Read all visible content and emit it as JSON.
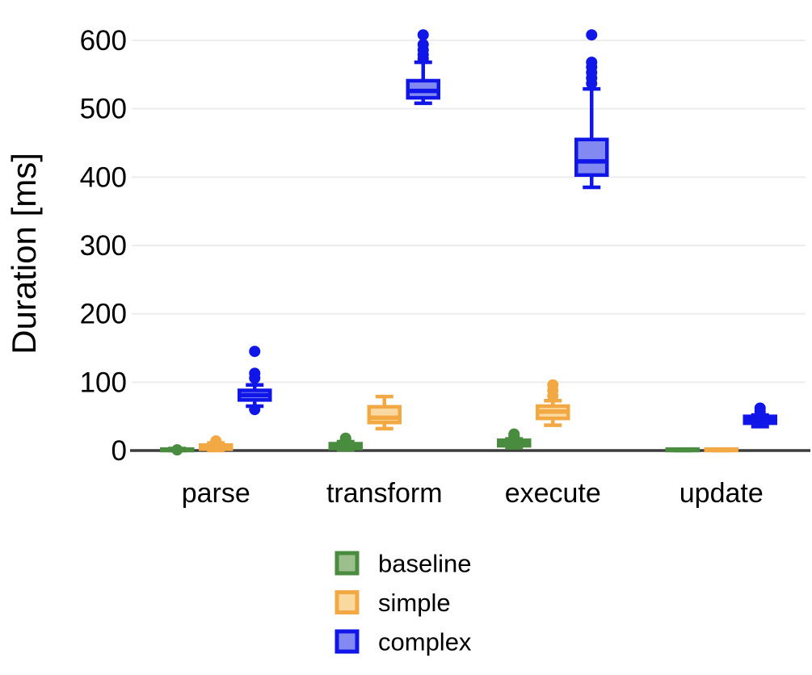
{
  "chart_data": {
    "type": "boxplot",
    "title": "",
    "xlabel": "",
    "ylabel": "Duration [ms]",
    "ylim": [
      0,
      640
    ],
    "yticks": [
      0,
      100,
      200,
      300,
      400,
      500,
      600
    ],
    "categories": [
      "parse",
      "transform",
      "execute",
      "update"
    ],
    "grid": "horizontal",
    "legend_position": "bottom",
    "colors": {
      "background": "#ffffff",
      "grid": "#ededed",
      "axis": "#3d3d3d",
      "text": "#000000"
    },
    "series": [
      {
        "name": "baseline",
        "border_color": "#4a8c3f",
        "fill_color": "#9dbf8e",
        "boxes": [
          {
            "category": "parse",
            "whisker_low": 0,
            "q1": 0,
            "median": 1,
            "q3": 2,
            "whisker_high": 3,
            "outliers": [
              1
            ]
          },
          {
            "category": "transform",
            "whisker_low": 1,
            "q1": 3,
            "median": 6,
            "q3": 10,
            "whisker_high": 13,
            "outliers": [
              14,
              16,
              18
            ]
          },
          {
            "category": "execute",
            "whisker_low": 4,
            "q1": 7,
            "median": 11,
            "q3": 15,
            "whisker_high": 17,
            "outliers": [
              20,
              22,
              24
            ]
          },
          {
            "category": "update",
            "whisker_low": 0,
            "q1": 0,
            "median": 1,
            "q3": 2,
            "whisker_high": 2,
            "outliers": []
          }
        ]
      },
      {
        "name": "simple",
        "border_color": "#f2a843",
        "fill_color": "#fad9a0",
        "boxes": [
          {
            "category": "parse",
            "whisker_low": 0,
            "q1": 2,
            "median": 5,
            "q3": 8,
            "whisker_high": 11,
            "outliers": [
              12,
              14
            ]
          },
          {
            "category": "transform",
            "whisker_low": 32,
            "q1": 41,
            "median": 48,
            "q3": 64,
            "whisker_high": 79,
            "outliers": []
          },
          {
            "category": "execute",
            "whisker_low": 37,
            "q1": 47,
            "median": 57,
            "q3": 65,
            "whisker_high": 73,
            "outliers": [
              80,
              88,
              96
            ]
          },
          {
            "category": "update",
            "whisker_low": 0,
            "q1": 0,
            "median": 1,
            "q3": 2,
            "whisker_high": 2,
            "outliers": []
          }
        ]
      },
      {
        "name": "complex",
        "border_color": "#1016e8",
        "fill_color": "#8289f0",
        "boxes": [
          {
            "category": "parse",
            "whisker_low": 65,
            "q1": 74,
            "median": 81,
            "q3": 88,
            "whisker_high": 96,
            "outliers": [
              60,
              106,
              113,
              145
            ]
          },
          {
            "category": "transform",
            "whisker_low": 508,
            "q1": 516,
            "median": 526,
            "q3": 541,
            "whisker_high": 568,
            "outliers": [
              573,
              579,
              586,
              594,
              608
            ]
          },
          {
            "category": "execute",
            "whisker_low": 385,
            "q1": 403,
            "median": 423,
            "q3": 455,
            "whisker_high": 529,
            "outliers": [
              537,
              545,
              553,
              561,
              568,
              608
            ]
          },
          {
            "category": "update",
            "whisker_low": 35,
            "q1": 40,
            "median": 45,
            "q3": 50,
            "whisker_high": 52,
            "outliers": [
              57,
              62
            ]
          }
        ]
      }
    ]
  }
}
